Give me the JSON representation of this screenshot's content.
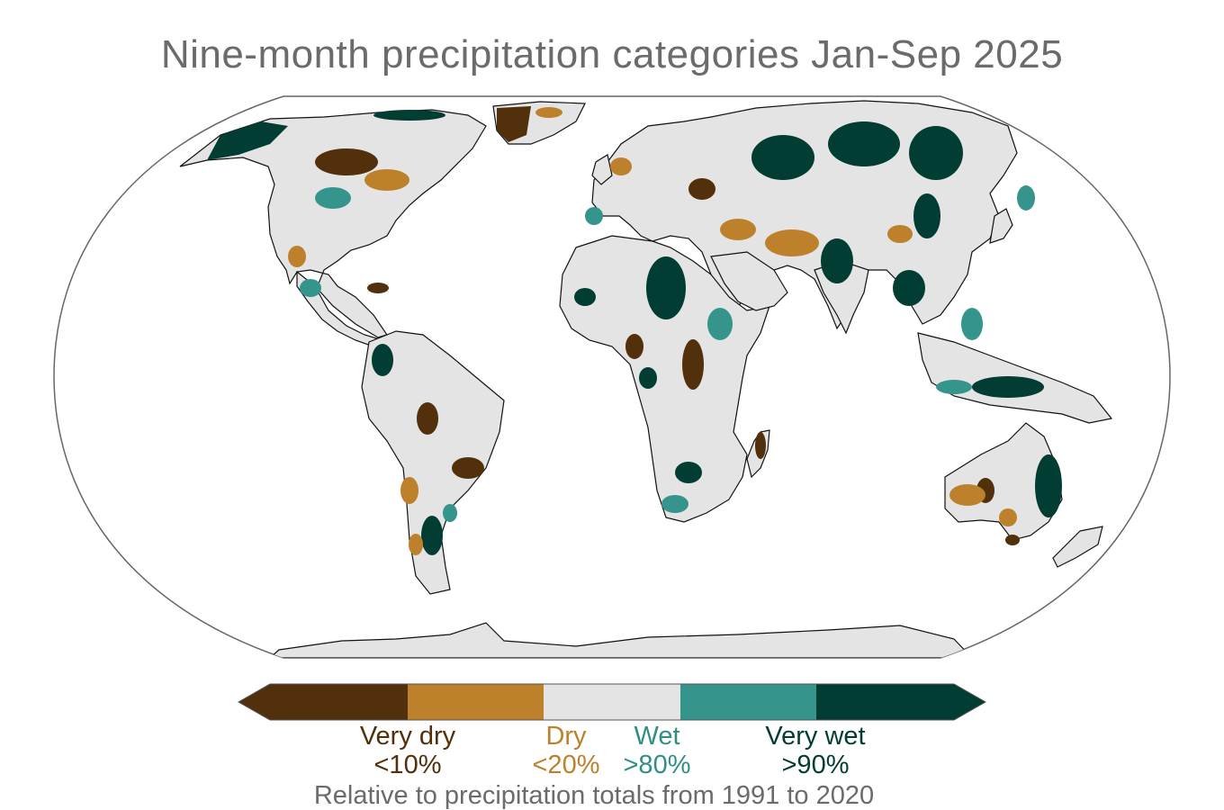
{
  "title": "Nine-month precipitation categories Jan-Sep 2025",
  "legend": {
    "colors": {
      "very_dry": "#51300b",
      "dry": "#bd812b",
      "normal": "#e4e4e4",
      "wet": "#35958d",
      "very_wet": "#013d32"
    },
    "items": [
      {
        "name": "Very dry",
        "threshold": "<10%",
        "color": "#51300b"
      },
      {
        "name": "Dry",
        "threshold": "<20%",
        "color": "#bd812b"
      },
      {
        "name": "Wet",
        "threshold": ">80%",
        "color": "#2f8f87"
      },
      {
        "name": "Very wet",
        "threshold": ">90%",
        "color": "#013d32"
      }
    ]
  },
  "footnote": "Relative to precipitation totals from 1991 to 2020"
}
